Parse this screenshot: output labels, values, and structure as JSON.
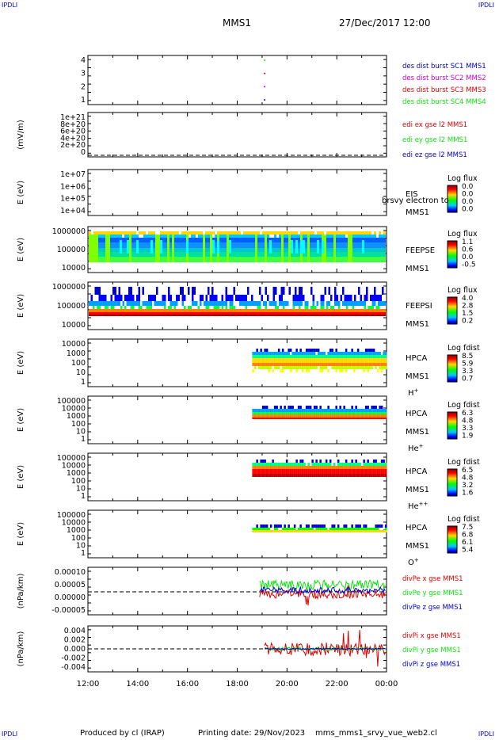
{
  "header": {
    "title": "MMS1",
    "datetime": "27/Dec/2017 12:00",
    "corner": "IPDLI"
  },
  "footer": {
    "producer": "Produced by cl (IRAP)",
    "print_date": "Printing date: 29/Nov/2023",
    "product": "mms_mms1_srvy_vue_web2.cl"
  },
  "colors": {
    "red": "#e00000",
    "green": "#10e010",
    "blue": "#0000c8",
    "magenta": "#cc00cc",
    "darkblue": "#000080"
  },
  "chart_data": [
    {
      "type": "scatter",
      "ytick_labels": [
        "4",
        "3",
        "2",
        "1"
      ],
      "yrange": [
        0.5,
        4.5
      ],
      "xrange": [
        12,
        24
      ],
      "series": [
        {
          "name": "des dist burst SC1 MMS1",
          "color": "#0000c8",
          "x": [
            19.1
          ],
          "y": [
            1
          ]
        },
        {
          "name": "des dist burst SC2 MMS2",
          "color": "#cc00cc",
          "x": [
            19.1
          ],
          "y": [
            2
          ]
        },
        {
          "name": "des dist burst SC3 MMS3",
          "color": "#e00000",
          "x": [
            19.1
          ],
          "y": [
            3
          ]
        },
        {
          "name": "des dist burst SC4 MMS4",
          "color": "#10e010",
          "x": [
            19.1
          ],
          "y": [
            4
          ]
        }
      ]
    },
    {
      "type": "line",
      "ylabel": "(mV/m)",
      "ytick_labels": [
        "1e+21",
        "8e+20",
        "6e+20",
        "4e+20",
        "2e+20",
        "0"
      ],
      "yrange": [
        0,
        1e+21
      ],
      "zero_line": true,
      "series": [
        {
          "name": "edi ex gse l2 MMS1",
          "color": "#e00000"
        },
        {
          "name": "edi ey gse l2 MMS1",
          "color": "#10e010"
        },
        {
          "name": "edi ez gse l2 MMS1",
          "color": "#0000c8"
        }
      ]
    },
    {
      "type": "heatmap",
      "ylabel": "E (eV)",
      "ytick_labels": [
        "1e+07",
        "1e+06",
        "1e+05",
        "1e+04"
      ],
      "instrument": [
        "EIS",
        "MMS1"
      ],
      "overlay_text": "brsvy electron to",
      "colorbar": {
        "title": "Log flux",
        "ticks": [
          "0.0",
          "0.0",
          "0.0",
          "0.0"
        ]
      }
    },
    {
      "type": "heatmap",
      "ylabel": "E (eV)",
      "ytick_labels": [
        "1000000",
        "100000",
        "10000"
      ],
      "instrument": [
        "FEEPSE",
        "MMS1"
      ],
      "colorbar": {
        "title": "Log flux",
        "ticks": [
          "1.1",
          "0.6",
          "0.0",
          "-0.5"
        ]
      }
    },
    {
      "type": "heatmap",
      "ylabel": "E (eV)",
      "ytick_labels": [
        "1000000",
        "100000",
        "10000"
      ],
      "instrument": [
        "FEEPSI",
        "MMS1"
      ],
      "colorbar": {
        "title": "Log flux",
        "ticks": [
          "4.0",
          "2.8",
          "1.5",
          "0.2"
        ]
      }
    },
    {
      "type": "heatmap",
      "ylabel": "E (eV)",
      "ytick_labels": [
        "10000",
        "1000",
        "100",
        "10",
        "1"
      ],
      "instrument": [
        "HPCA",
        "MMS1"
      ],
      "species": "H",
      "species_sup": "+",
      "colorbar": {
        "title": "Log fdist",
        "ticks": [
          "8.5",
          "5.9",
          "3.3",
          "0.7"
        ]
      }
    },
    {
      "type": "heatmap",
      "ylabel": "E (eV)",
      "ytick_labels": [
        "100000",
        "10000",
        "1000",
        "100",
        "10",
        "1"
      ],
      "instrument": [
        "HPCA",
        "MMS1"
      ],
      "species": "He",
      "species_sup": "+",
      "colorbar": {
        "title": "Log fdist",
        "ticks": [
          "6.3",
          "4.8",
          "3.3",
          "1.9"
        ]
      }
    },
    {
      "type": "heatmap",
      "ylabel": "E (eV)",
      "ytick_labels": [
        "100000",
        "10000",
        "1000",
        "100",
        "10",
        "1"
      ],
      "instrument": [
        "HPCA",
        "MMS1"
      ],
      "species": "He",
      "species_sup": "++",
      "colorbar": {
        "title": "Log fdist",
        "ticks": [
          "6.5",
          "4.8",
          "3.2",
          "1.6"
        ]
      }
    },
    {
      "type": "heatmap",
      "ylabel": "E (eV)",
      "ytick_labels": [
        "100000",
        "10000",
        "1000",
        "100",
        "10",
        "1"
      ],
      "instrument": [
        "HPCA",
        "MMS1"
      ],
      "species": "O",
      "species_sup": "+",
      "colorbar": {
        "title": "Log fdist",
        "ticks": [
          "7.5",
          "6.8",
          "6.1",
          "5.4"
        ]
      }
    },
    {
      "type": "line",
      "ylabel": "(nPa/km)",
      "ytick_labels": [
        "0.00010",
        "0.00005",
        "0.00000",
        "-0.00005"
      ],
      "yrange": [
        -0.0001,
        0.0001
      ],
      "zero_line": true,
      "series": [
        {
          "name": "divPe x gse MMS1",
          "color": "#e00000"
        },
        {
          "name": "divPe y gse MMS1",
          "color": "#10e010"
        },
        {
          "name": "divPe z gse MMS1",
          "color": "#0000c8"
        }
      ]
    },
    {
      "type": "line",
      "ylabel": "(nPa/km)",
      "ytick_labels": [
        "0.004",
        "0.002",
        "0.000",
        "-0.002",
        "-0.004"
      ],
      "yrange": [
        -0.004,
        0.004
      ],
      "zero_line": true,
      "xtick_labels": [
        "12:00",
        "14:00",
        "16:00",
        "18:00",
        "20:00",
        "22:00",
        "00:00"
      ],
      "series": [
        {
          "name": "divPi x gse MMS1",
          "color": "#e00000"
        },
        {
          "name": "divPi y gse MMS1",
          "color": "#10e010"
        },
        {
          "name": "divPi z gse MMS1",
          "color": "#0000c8"
        }
      ]
    }
  ]
}
